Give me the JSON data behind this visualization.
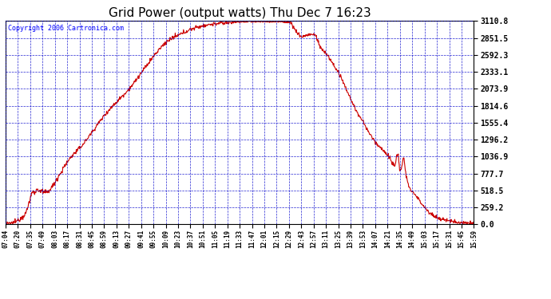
{
  "title": "Grid Power (output watts) Thu Dec 7 16:23",
  "copyright": "Copyright 2006 Cartronica.com",
  "line_color": "#cc0000",
  "bg_color": "#ffffff",
  "plot_bg_color": "#ffffff",
  "grid_color": "#0000cc",
  "border_color": "#000000",
  "y_ticks": [
    0.0,
    259.2,
    518.5,
    777.7,
    1036.9,
    1296.2,
    1555.4,
    1814.6,
    2073.9,
    2333.1,
    2592.3,
    2851.5,
    3110.8
  ],
  "x_tick_labels": [
    "07:04",
    "07:20",
    "07:35",
    "07:49",
    "08:03",
    "08:17",
    "08:31",
    "08:45",
    "08:59",
    "09:13",
    "09:27",
    "09:41",
    "09:55",
    "10:09",
    "10:23",
    "10:37",
    "10:51",
    "11:05",
    "11:19",
    "11:33",
    "11:47",
    "12:01",
    "12:15",
    "12:29",
    "12:43",
    "12:57",
    "13:11",
    "13:25",
    "13:39",
    "13:53",
    "14:07",
    "14:21",
    "14:35",
    "14:49",
    "15:03",
    "15:17",
    "15:31",
    "15:45",
    "15:59"
  ],
  "ymax": 3110.8,
  "ymin": 0.0,
  "title_fontsize": 11,
  "copyright_fontsize": 6,
  "ytick_fontsize": 7,
  "xtick_fontsize": 5.5
}
